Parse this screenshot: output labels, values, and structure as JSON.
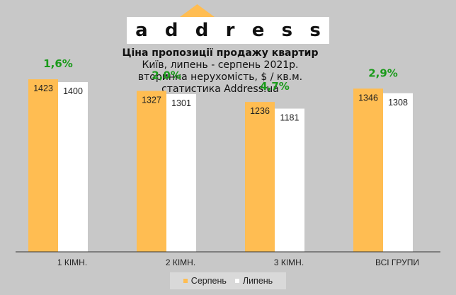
{
  "logo": {
    "letters": [
      "a",
      "d",
      "d",
      "r",
      "e",
      "s",
      "s"
    ]
  },
  "colors": {
    "august": "#ffbd52",
    "july": "#ffffff",
    "change": "#1a9a1a",
    "logo_house": "#ffbd52",
    "background": "#c8c8c8"
  },
  "chart_data": {
    "type": "bar",
    "title": "Ціна пропозиції продажу квартир",
    "subtitle_lines": [
      "Київ, липень - серпень 2021р.",
      "вторинна нерухомість, $ / кв.м.",
      "статистика Address.ua"
    ],
    "categories": [
      "1 КІМН.",
      "2 КІМН.",
      "3 КІМН.",
      "ВСІ ГРУПИ"
    ],
    "series": [
      {
        "name": "Серпень",
        "values": [
          1423,
          1327,
          1236,
          1346
        ]
      },
      {
        "name": "Липень",
        "values": [
          1400,
          1301,
          1181,
          1308
        ]
      }
    ],
    "changes": [
      "1,6%",
      "2,0%",
      "4,7%",
      "2,9%"
    ],
    "ylim": [
      0,
      1575
    ],
    "grid": false,
    "legend_position": "bottom"
  }
}
